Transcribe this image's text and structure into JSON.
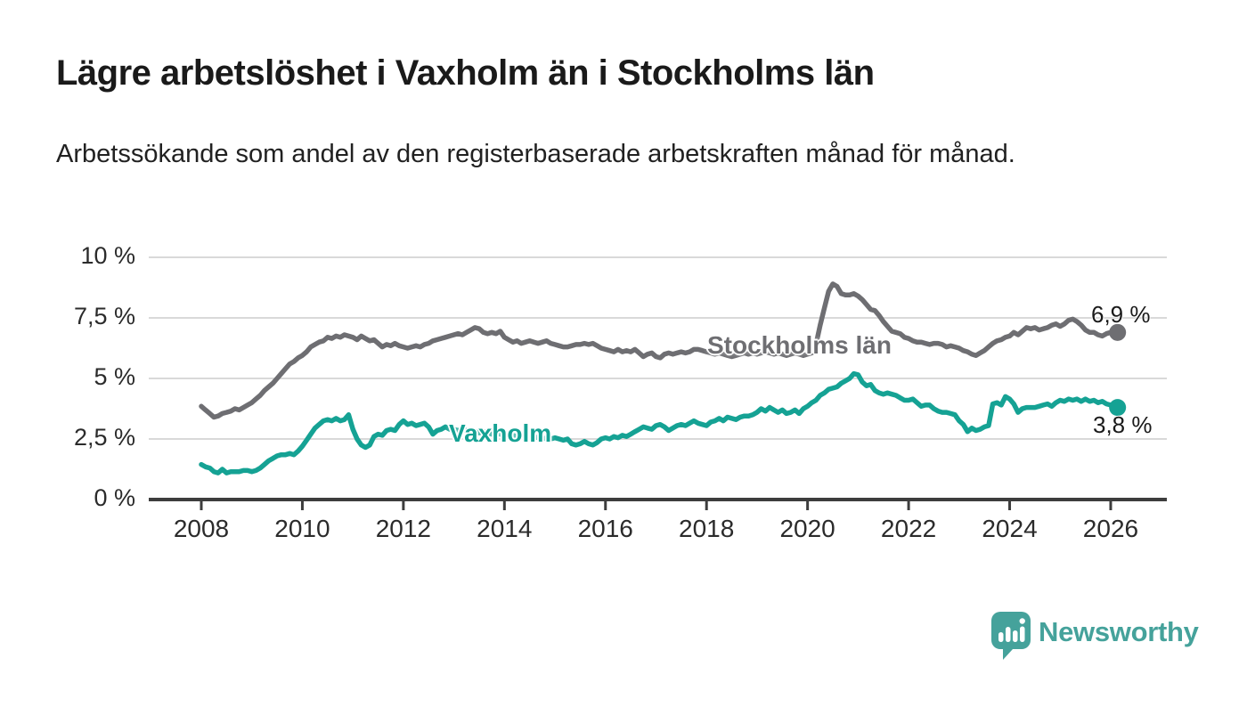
{
  "header": {
    "title": "Lägre arbetslöshet i Vaxholm än i Stockholms län",
    "subtitle": "Arbetssökande som andel av den registerbaserade arbetskraften månad för månad."
  },
  "colors": {
    "grid": "#d9d9d9",
    "axis": "#3d3d3d",
    "ink": "#1a1a1a"
  },
  "branding": {
    "name": "Newsworthy",
    "color": "#45a29b"
  },
  "chart_data": {
    "type": "line",
    "x_unit": "month",
    "x_start": "2008-01",
    "x_end": "2026-02",
    "grid": true,
    "ylim": [
      0,
      10.4
    ],
    "xticks": [
      2008,
      2010,
      2012,
      2014,
      2016,
      2018,
      2020,
      2022,
      2024,
      2026
    ],
    "yticks": [
      {
        "value": 0,
        "label": "0 %"
      },
      {
        "value": 2.5,
        "label": "2,5 %"
      },
      {
        "value": 5,
        "label": "5 %"
      },
      {
        "value": 7.5,
        "label": "7,5 %"
      },
      {
        "value": 10,
        "label": "10 %"
      }
    ],
    "series": [
      {
        "name": "Stockholms län",
        "color": "#6e6e72",
        "end_label": "6,9 %",
        "end_value": 6.9,
        "values": [
          3.85,
          3.7,
          3.55,
          3.4,
          3.45,
          3.55,
          3.6,
          3.65,
          3.75,
          3.7,
          3.8,
          3.9,
          4.0,
          4.15,
          4.3,
          4.5,
          4.65,
          4.8,
          5.0,
          5.2,
          5.4,
          5.6,
          5.7,
          5.85,
          5.95,
          6.1,
          6.3,
          6.4,
          6.5,
          6.55,
          6.7,
          6.65,
          6.75,
          6.7,
          6.8,
          6.75,
          6.7,
          6.6,
          6.75,
          6.65,
          6.55,
          6.6,
          6.45,
          6.3,
          6.4,
          6.35,
          6.45,
          6.35,
          6.3,
          6.25,
          6.3,
          6.35,
          6.3,
          6.4,
          6.45,
          6.55,
          6.6,
          6.65,
          6.7,
          6.75,
          6.8,
          6.85,
          6.8,
          6.9,
          7.0,
          7.1,
          7.05,
          6.9,
          6.85,
          6.9,
          6.85,
          6.95,
          6.7,
          6.6,
          6.5,
          6.55,
          6.45,
          6.5,
          6.55,
          6.5,
          6.45,
          6.5,
          6.55,
          6.45,
          6.4,
          6.35,
          6.3,
          6.3,
          6.35,
          6.4,
          6.4,
          6.45,
          6.4,
          6.45,
          6.35,
          6.25,
          6.2,
          6.15,
          6.1,
          6.2,
          6.1,
          6.15,
          6.1,
          6.2,
          6.05,
          5.9,
          6.0,
          6.05,
          5.9,
          5.85,
          6.0,
          6.05,
          6.0,
          6.05,
          6.1,
          6.05,
          6.1,
          6.2,
          6.2,
          6.15,
          6.1,
          6.05,
          6.0,
          6.05,
          6.0,
          5.95,
          5.9,
          5.95,
          6.0,
          6.05,
          6.0,
          6.05,
          6.0,
          6.05,
          6.1,
          6.05,
          6.0,
          6.05,
          6.0,
          5.95,
          6.0,
          6.05,
          6.0,
          5.95,
          6.0,
          6.05,
          6.4,
          7.2,
          7.9,
          8.6,
          8.9,
          8.8,
          8.5,
          8.45,
          8.45,
          8.5,
          8.4,
          8.25,
          8.05,
          7.85,
          7.8,
          7.6,
          7.35,
          7.15,
          6.95,
          6.9,
          6.85,
          6.7,
          6.65,
          6.55,
          6.5,
          6.5,
          6.45,
          6.4,
          6.45,
          6.45,
          6.4,
          6.3,
          6.35,
          6.3,
          6.25,
          6.15,
          6.1,
          6.0,
          5.95,
          6.05,
          6.15,
          6.3,
          6.45,
          6.55,
          6.6,
          6.7,
          6.75,
          6.9,
          6.8,
          6.95,
          7.1,
          7.05,
          7.1,
          7.0,
          7.05,
          7.1,
          7.2,
          7.25,
          7.15,
          7.25,
          7.4,
          7.45,
          7.35,
          7.2,
          7.0,
          6.9,
          6.9,
          6.8,
          6.75,
          6.85,
          6.9,
          6.9
        ]
      },
      {
        "name": "Vaxholm",
        "color": "#15a294",
        "end_label": "3,8 %",
        "end_value": 3.8,
        "values": [
          1.45,
          1.35,
          1.3,
          1.15,
          1.1,
          1.25,
          1.1,
          1.15,
          1.15,
          1.15,
          1.2,
          1.2,
          1.15,
          1.2,
          1.3,
          1.45,
          1.6,
          1.7,
          1.8,
          1.85,
          1.85,
          1.9,
          1.85,
          2.0,
          2.2,
          2.45,
          2.7,
          2.95,
          3.1,
          3.25,
          3.3,
          3.25,
          3.35,
          3.25,
          3.3,
          3.5,
          2.9,
          2.5,
          2.25,
          2.15,
          2.25,
          2.6,
          2.7,
          2.65,
          2.85,
          2.9,
          2.85,
          3.1,
          3.25,
          3.1,
          3.15,
          3.05,
          3.1,
          3.15,
          3.0,
          2.7,
          2.85,
          2.9,
          3.0,
          2.9,
          2.9,
          2.85,
          2.9,
          2.85,
          2.8,
          2.8,
          2.75,
          2.8,
          2.75,
          2.7,
          2.75,
          2.7,
          2.65,
          2.7,
          2.65,
          2.6,
          2.65,
          2.6,
          2.55,
          2.6,
          2.55,
          2.5,
          2.55,
          2.5,
          2.55,
          2.5,
          2.45,
          2.5,
          2.3,
          2.25,
          2.3,
          2.4,
          2.3,
          2.25,
          2.35,
          2.5,
          2.55,
          2.5,
          2.6,
          2.55,
          2.65,
          2.6,
          2.7,
          2.8,
          2.9,
          3.0,
          2.95,
          2.9,
          3.05,
          3.1,
          3.0,
          2.85,
          2.95,
          3.05,
          3.1,
          3.05,
          3.15,
          3.25,
          3.15,
          3.1,
          3.05,
          3.2,
          3.25,
          3.35,
          3.25,
          3.4,
          3.35,
          3.3,
          3.4,
          3.45,
          3.45,
          3.5,
          3.6,
          3.75,
          3.65,
          3.8,
          3.7,
          3.6,
          3.7,
          3.55,
          3.6,
          3.7,
          3.55,
          3.75,
          3.85,
          4.0,
          4.1,
          4.3,
          4.4,
          4.55,
          4.6,
          4.65,
          4.8,
          4.9,
          5.0,
          5.2,
          5.15,
          4.85,
          4.7,
          4.75,
          4.5,
          4.4,
          4.35,
          4.4,
          4.35,
          4.3,
          4.2,
          4.1,
          4.1,
          4.15,
          4.0,
          3.85,
          3.9,
          3.9,
          3.75,
          3.65,
          3.6,
          3.6,
          3.55,
          3.5,
          3.25,
          3.1,
          2.8,
          2.95,
          2.85,
          2.9,
          3.0,
          3.05,
          3.95,
          4.0,
          3.9,
          4.25,
          4.15,
          3.95,
          3.6,
          3.75,
          3.8,
          3.8,
          3.8,
          3.85,
          3.9,
          3.95,
          3.85,
          4.0,
          4.1,
          4.05,
          4.15,
          4.1,
          4.15,
          4.05,
          4.15,
          4.05,
          4.1,
          4.0,
          4.05,
          3.95,
          3.9,
          3.8
        ]
      }
    ]
  }
}
